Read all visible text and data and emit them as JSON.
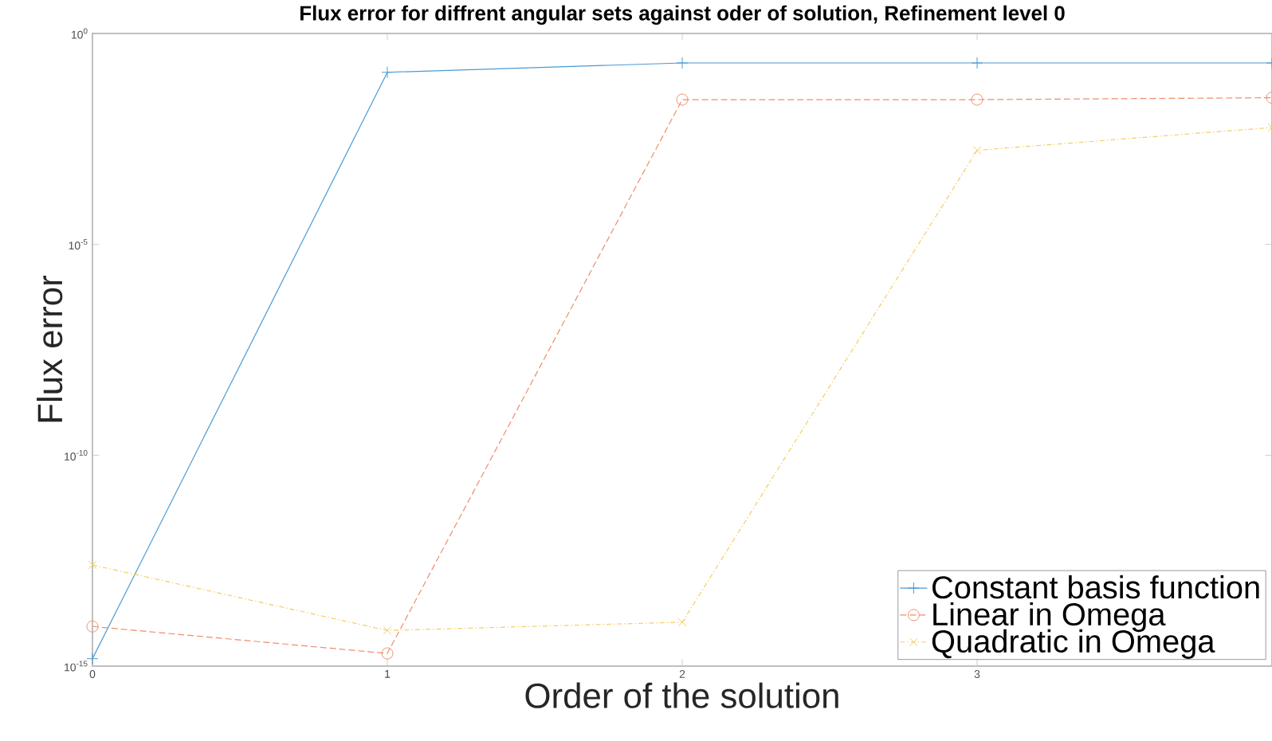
{
  "chart_data": {
    "type": "line",
    "title": "Flux error for diffrent angular sets against oder of solution, Refinement level 0",
    "xlabel": "Order of the solution",
    "ylabel": "Flux error",
    "x": [
      0,
      1,
      2,
      3,
      4
    ],
    "series": [
      {
        "name": "Constant basis function",
        "color": "#4a9ad4",
        "marker": "plus",
        "line_style": "solid",
        "values": [
          1.5e-15,
          0.12,
          0.2,
          0.2,
          0.2
        ]
      },
      {
        "name": "Linear in Omega",
        "color": "#ee8c6a",
        "marker": "circle",
        "line_style": "dashed",
        "values": [
          8.7e-15,
          2e-15,
          0.027,
          0.027,
          0.03
        ]
      },
      {
        "name": "Quadratic in Omega",
        "color": "#f5cd60",
        "marker": "cross",
        "line_style": "dotted",
        "values": [
          2.5e-13,
          7e-15,
          1.1e-14,
          0.0017,
          0.0059
        ]
      }
    ],
    "log": "y",
    "grid": false,
    "legend": "bottom right",
    "xlim": [
      0,
      4
    ],
    "xticks": [
      0,
      1,
      2,
      3
    ],
    "ylim": [
      1e-15,
      1
    ],
    "yticks": [
      {
        "value": 1e-15,
        "label": "10$^{-15}$"
      },
      {
        "value": 1e-10,
        "label": "10$^{-10}$"
      },
      {
        "value": 1e-05,
        "label": "10$^{-5}$"
      },
      {
        "value": 1,
        "label": "10$^{0}$"
      }
    ]
  }
}
